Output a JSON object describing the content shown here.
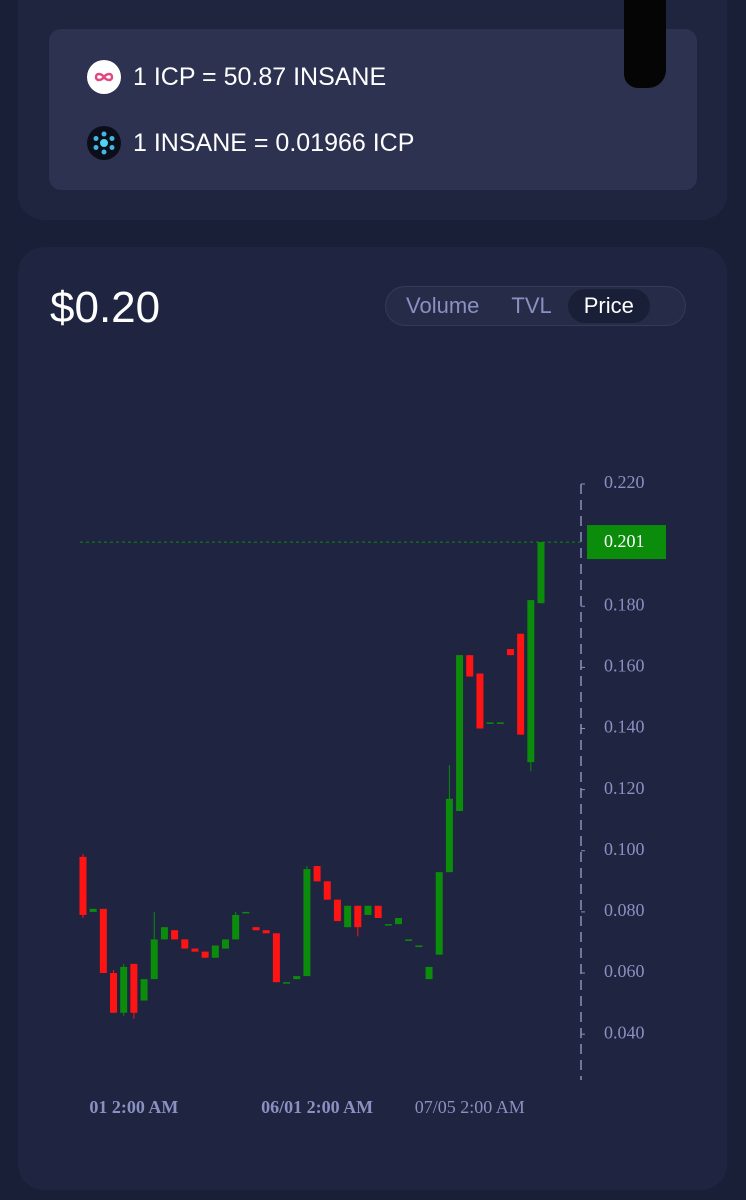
{
  "rates": [
    "1 ICP = 50.87 INSANE",
    "1 INSANE = 0.01966 ICP"
  ],
  "price": "$0.20",
  "tabs": [
    "Volume",
    "TVL",
    "Price"
  ],
  "chart_data": {
    "type": "candlestick",
    "categories": [
      null,
      null,
      null,
      null,
      null,
      "01 2:00 AM",
      null,
      null,
      null,
      null,
      null,
      null,
      null,
      null,
      null,
      null,
      null,
      null,
      null,
      null,
      null,
      null,
      null,
      "06/01 2:00 AM",
      null,
      null,
      null,
      null,
      null,
      null,
      null,
      null,
      null,
      null,
      null,
      null,
      null,
      null,
      "07/05 2:00 AM",
      null,
      null,
      null,
      null,
      null,
      null,
      null
    ],
    "open": [
      0.098,
      0.08,
      0.081,
      0.06,
      0.047,
      0.063,
      0.051,
      0.058,
      0.071,
      0.074,
      0.071,
      0.068,
      0.067,
      0.065,
      0.068,
      0.071,
      0.08,
      0.075,
      0.074,
      0.073,
      0.057,
      0.058,
      0.059,
      0.095,
      0.09,
      0.084,
      0.075,
      0.082,
      0.079,
      0.082,
      0.076,
      0.076,
      0.071,
      0.069,
      0.058,
      0.066,
      0.093,
      0.113,
      0.164,
      0.158,
      0.142,
      0.142,
      0.166,
      0.171,
      0.129,
      0.181
    ],
    "high": [
      0.099,
      0.081,
      0.081,
      0.061,
      0.063,
      0.063,
      0.058,
      0.08,
      0.075,
      0.074,
      0.071,
      0.068,
      0.067,
      0.069,
      0.071,
      0.08,
      0.08,
      0.075,
      0.074,
      0.073,
      0.057,
      0.059,
      0.095,
      0.095,
      0.09,
      0.084,
      0.082,
      0.082,
      0.082,
      0.082,
      0.076,
      0.078,
      0.071,
      0.069,
      0.062,
      0.093,
      0.128,
      0.164,
      0.164,
      0.158,
      0.142,
      0.142,
      0.166,
      0.171,
      0.182,
      0.201
    ],
    "low": [
      0.078,
      0.08,
      0.06,
      0.047,
      0.046,
      0.045,
      0.051,
      0.058,
      0.071,
      0.071,
      0.068,
      0.067,
      0.065,
      0.065,
      0.068,
      0.071,
      0.08,
      0.074,
      0.073,
      0.057,
      0.057,
      0.058,
      0.059,
      0.09,
      0.084,
      0.077,
      0.075,
      0.072,
      0.079,
      0.078,
      0.076,
      0.076,
      0.071,
      0.069,
      0.058,
      0.066,
      0.093,
      0.113,
      0.157,
      0.14,
      0.142,
      0.142,
      0.164,
      0.138,
      0.126,
      0.181
    ],
    "close": [
      0.079,
      0.081,
      0.06,
      0.047,
      0.062,
      0.047,
      0.058,
      0.071,
      0.075,
      0.071,
      0.068,
      0.067,
      0.065,
      0.069,
      0.071,
      0.079,
      0.08,
      0.074,
      0.073,
      0.057,
      0.057,
      0.059,
      0.094,
      0.09,
      0.084,
      0.077,
      0.082,
      0.075,
      0.082,
      0.078,
      0.076,
      0.078,
      0.071,
      0.069,
      0.062,
      0.093,
      0.117,
      0.164,
      0.157,
      0.14,
      0.142,
      0.142,
      0.164,
      0.138,
      0.182,
      0.201
    ],
    "up_color": "#0b8c0b",
    "down_color": "#ff1414",
    "ylim": [
      0.025,
      0.22
    ],
    "yticks": [
      {
        "value": 0.04,
        "label": "0.040"
      },
      {
        "value": 0.06,
        "label": "0.060"
      },
      {
        "value": 0.08,
        "label": "0.080"
      },
      {
        "value": 0.1,
        "label": "0.100"
      },
      {
        "value": 0.12,
        "label": "0.120"
      },
      {
        "value": 0.14,
        "label": "0.140"
      },
      {
        "value": 0.16,
        "label": "0.160"
      },
      {
        "value": 0.18,
        "label": "0.180"
      },
      {
        "value": 0.22,
        "label": "0.220"
      }
    ],
    "last_price": 0.201
  }
}
